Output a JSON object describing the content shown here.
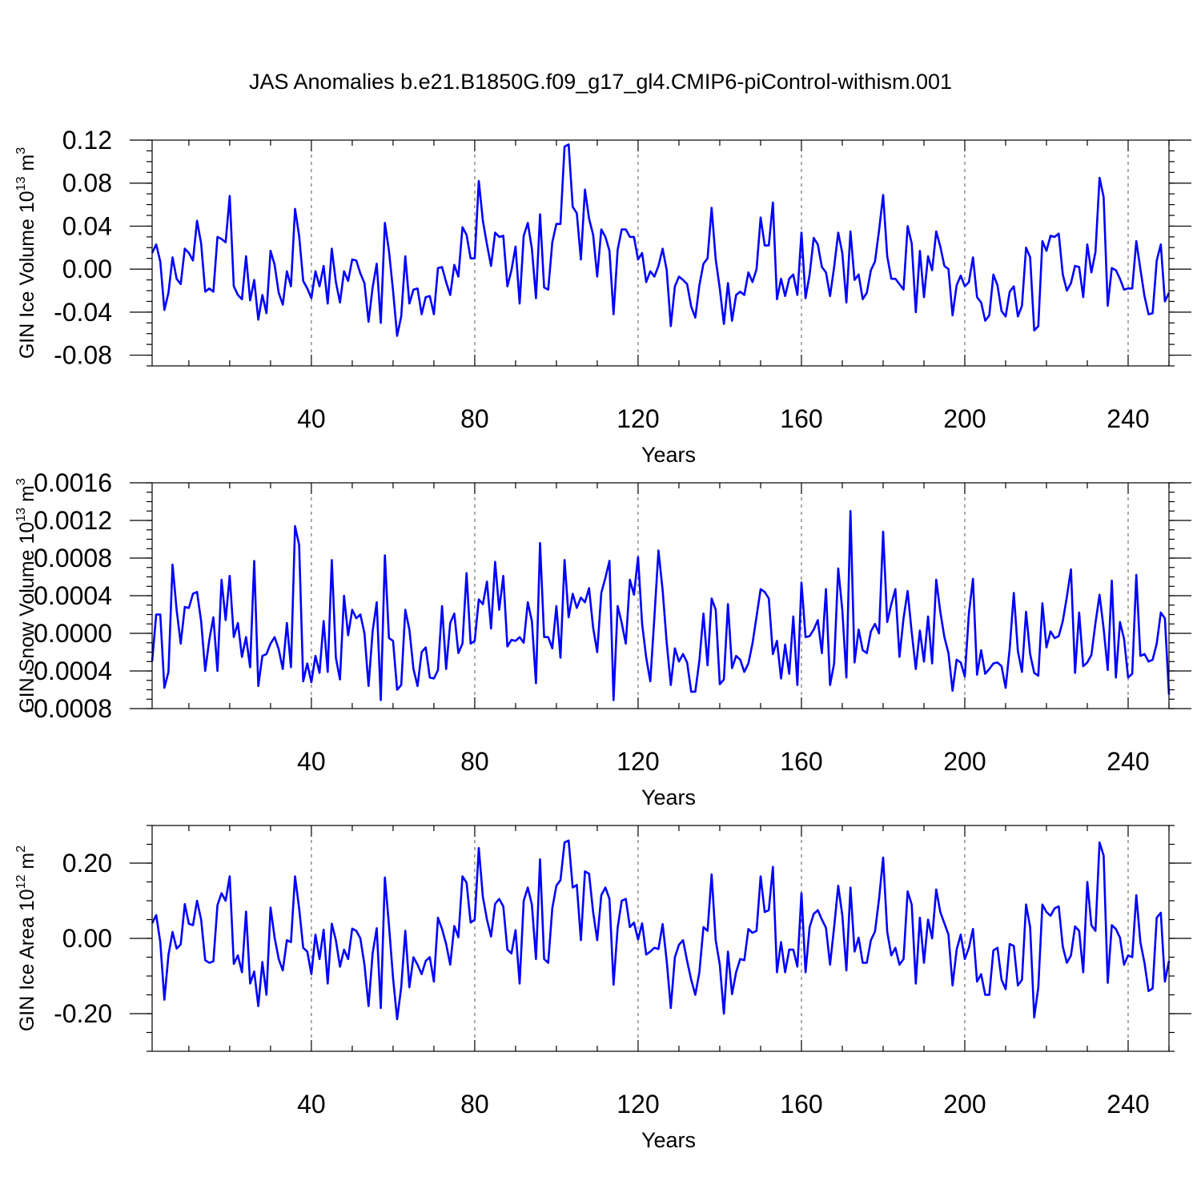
{
  "figure_title": "JAS Anomalies b.e21.B1850G.f09_g17_gl4.CMIP6-piControl-withism.001",
  "colors": {
    "line": "#0000ff",
    "axes": "#000000"
  },
  "chart_data": [
    {
      "type": "line",
      "title": "JAS Anomalies b.e21.B1850G.f09_g17_gl4.CMIP6-piControl-withism.001",
      "xlabel": "Years",
      "ylabel": {
        "text": "GIN Ice Volume 10",
        "exp": "13",
        "unit": " m",
        "unit_exp": "3"
      },
      "xlim": [
        1,
        250
      ],
      "ylim": [
        -0.09,
        0.12
      ],
      "xticks": [
        40,
        80,
        120,
        160,
        200,
        240
      ],
      "xtick_labels": [
        "40",
        "80",
        "120",
        "160",
        "200",
        "240"
      ],
      "yticks": [
        -0.08,
        -0.04,
        0.0,
        0.04,
        0.08,
        0.12
      ],
      "ytick_labels": [
        "-0.08",
        "-0.04",
        "0.00",
        "0.04",
        "0.08",
        "0.12"
      ],
      "grid": "vertical dashed at major x ticks",
      "series": [
        {
          "name": "GIN Ice Volume",
          "x_start": 1,
          "values": [
            0.015,
            0.023,
            0.007,
            -0.038,
            -0.022,
            0.011,
            -0.009,
            -0.014,
            0.019,
            0.015,
            0.008,
            0.045,
            0.024,
            -0.021,
            -0.018,
            -0.021,
            0.03,
            0.028,
            0.025,
            0.068,
            -0.016,
            -0.024,
            -0.028,
            0.012,
            -0.029,
            -0.01,
            -0.047,
            -0.024,
            -0.041,
            0.017,
            0.004,
            -0.022,
            -0.033,
            -0.002,
            -0.016,
            0.056,
            0.031,
            -0.011,
            -0.018,
            -0.027,
            -0.002,
            -0.016,
            0.003,
            -0.032,
            0.019,
            -0.012,
            -0.031,
            -0.002,
            -0.011,
            0.009,
            0.008,
            -0.004,
            -0.013,
            -0.049,
            -0.017,
            0.005,
            -0.05,
            0.043,
            0.017,
            -0.02,
            -0.062,
            -0.044,
            0.012,
            -0.032,
            -0.019,
            -0.018,
            -0.042,
            -0.026,
            -0.025,
            -0.042,
            0.001,
            0.002,
            -0.012,
            -0.024,
            0.004,
            -0.007,
            0.039,
            0.032,
            0.01,
            0.01,
            0.082,
            0.045,
            0.023,
            0.003,
            0.034,
            0.03,
            0.031,
            -0.016,
            -0.001,
            0.021,
            -0.032,
            0.031,
            0.043,
            0.019,
            -0.027,
            0.051,
            -0.017,
            -0.019,
            0.025,
            0.042,
            0.042,
            0.114,
            0.116,
            0.058,
            0.052,
            0.009,
            0.074,
            0.047,
            0.032,
            -0.007,
            0.037,
            0.03,
            0.017,
            -0.042,
            0.018,
            0.037,
            0.037,
            0.03,
            0.03,
            0.009,
            0.015,
            -0.012,
            -0.002,
            -0.007,
            0.003,
            0.019,
            -0.001,
            -0.053,
            -0.016,
            -0.007,
            -0.01,
            -0.014,
            -0.035,
            -0.045,
            -0.015,
            0.005,
            0.01,
            0.057,
            0.009,
            -0.018,
            -0.051,
            -0.013,
            -0.048,
            -0.024,
            -0.021,
            -0.024,
            -0.003,
            -0.012,
            0.0,
            0.048,
            0.022,
            0.022,
            0.062,
            -0.028,
            -0.009,
            -0.025,
            -0.009,
            -0.005,
            -0.024,
            0.034,
            -0.027,
            -0.005,
            0.029,
            0.023,
            0.002,
            -0.003,
            -0.025,
            0.002,
            0.034,
            0.015,
            -0.031,
            0.035,
            -0.01,
            -0.005,
            -0.028,
            -0.022,
            -0.001,
            0.007,
            0.036,
            0.069,
            0.012,
            -0.009,
            -0.009,
            -0.014,
            -0.019,
            0.04,
            0.024,
            -0.04,
            0.017,
            -0.026,
            0.012,
            -0.001,
            0.035,
            0.021,
            0.003,
            0.0,
            -0.043,
            -0.015,
            -0.006,
            -0.016,
            -0.012,
            0.011,
            -0.026,
            -0.031,
            -0.048,
            -0.043,
            -0.005,
            -0.015,
            -0.039,
            -0.044,
            -0.021,
            -0.016,
            -0.044,
            -0.034,
            0.02,
            0.011,
            -0.057,
            -0.053,
            0.026,
            0.017,
            0.031,
            0.03,
            0.033,
            -0.005,
            -0.02,
            -0.013,
            0.003,
            0.002,
            -0.026,
            0.023,
            -0.003,
            0.016,
            0.085,
            0.067,
            -0.034,
            0.001,
            -0.001,
            -0.009,
            -0.019,
            -0.018,
            -0.018,
            0.026,
            0.0,
            -0.025,
            -0.042,
            -0.041,
            0.008,
            0.023,
            -0.03,
            -0.022
          ]
        }
      ]
    },
    {
      "type": "line",
      "title": "",
      "xlabel": "Years",
      "ylabel": {
        "text": "GIN Snow Volume 10",
        "exp": "13",
        "unit": " m",
        "unit_exp": "3"
      },
      "xlim": [
        1,
        250
      ],
      "ylim": [
        -0.0008,
        0.0016
      ],
      "xticks": [
        40,
        80,
        120,
        160,
        200,
        240
      ],
      "xtick_labels": [
        "40",
        "80",
        "120",
        "160",
        "200",
        "240"
      ],
      "yticks": [
        -0.0008,
        -0.0004,
        0.0,
        0.0004,
        0.0008,
        0.0012,
        0.0016
      ],
      "ytick_labels": [
        "-0.0008",
        "-0.0004",
        "0.0000",
        "0.0004",
        "0.0008",
        "0.0012",
        "0.0016"
      ],
      "grid": "vertical dashed at major x ticks",
      "series": [
        {
          "name": "GIN Snow Volume",
          "x_start": 1,
          "values": [
            -0.0003,
            0.0002,
            0.0002,
            -0.00058,
            -0.00041,
            0.00073,
            0.00025,
            -0.00011,
            0.00028,
            0.00027,
            0.00042,
            0.00044,
            0.00013,
            -0.0004,
            -7e-05,
            0.00017,
            -0.0004,
            0.00057,
            0.00014,
            0.00061,
            -4e-05,
            0.00011,
            -0.00025,
            -4e-05,
            -0.00036,
            0.00077,
            -0.00056,
            -0.00024,
            -0.00022,
            -0.00011,
            -4e-05,
            -0.00017,
            -0.00038,
            0.00011,
            -0.00036,
            0.00114,
            0.00094,
            -0.00051,
            -0.00032,
            -0.00052,
            -0.00024,
            -0.00042,
            0.00013,
            -0.00041,
            0.00078,
            -0.00026,
            -0.00049,
            0.0004,
            -2e-05,
            0.00025,
            0.00016,
            0.0002,
            0.0,
            -0.00056,
            2e-05,
            0.00033,
            -0.00071,
            0.00083,
            -5e-05,
            -8e-05,
            -0.0006,
            -0.00055,
            0.00025,
            4e-05,
            -0.00038,
            -0.00056,
            -0.0002,
            -0.00015,
            -0.00047,
            -0.00048,
            -0.00039,
            0.00029,
            -0.00038,
            0.00011,
            0.00021,
            -0.00021,
            -0.00011,
            0.00064,
            -0.00011,
            -8e-05,
            0.00036,
            0.00031,
            0.00055,
            5e-05,
            0.00076,
            0.00025,
            0.00061,
            -0.00014,
            -7e-05,
            -8e-05,
            -4e-05,
            -0.0001,
            0.00033,
            0.00013,
            -0.00053,
            0.00096,
            -4e-05,
            -4e-05,
            -0.00016,
            0.00029,
            -0.00026,
            0.00078,
            0.00017,
            0.00042,
            0.00027,
            0.00038,
            0.00033,
            0.00048,
            6e-05,
            -0.0002,
            0.00043,
            0.00059,
            0.00077,
            -0.00071,
            0.00029,
            0.00011,
            -0.00011,
            0.00057,
            0.00041,
            0.00081,
            0.0001,
            -0.00026,
            -0.00051,
            0.00017,
            0.00088,
            0.00046,
            -0.0001,
            -0.00055,
            -0.00016,
            -0.0003,
            -0.00022,
            -0.00031,
            -0.00062,
            -0.00062,
            -0.00029,
            0.00021,
            -0.00034,
            0.00037,
            0.00025,
            -0.00054,
            -0.00049,
            0.00031,
            -0.00037,
            -0.00024,
            -0.00028,
            -0.00041,
            -0.00032,
            -0.00011,
            0.00018,
            0.00047,
            0.00044,
            0.00037,
            -0.00022,
            -8e-05,
            -0.00048,
            -0.00012,
            -0.00043,
            0.00018,
            -0.00055,
            0.00054,
            -4e-05,
            -3e-05,
            4e-05,
            0.00014,
            -0.00021,
            0.00047,
            -0.00055,
            -0.00032,
            0.00069,
            0.00025,
            -0.00047,
            0.0013,
            -0.00031,
            4e-05,
            -0.00018,
            -0.00021,
            2e-05,
            0.0001,
            0.0,
            0.00108,
            0.00012,
            0.00031,
            0.00047,
            -0.00025,
            0.00016,
            0.00045,
            1e-05,
            -0.00038,
            3e-05,
            -0.0003,
            0.00018,
            -0.00032,
            0.00057,
            0.00023,
            -4e-05,
            -0.00021,
            -0.00061,
            -0.00028,
            -0.00031,
            -0.00046,
            0.00021,
            0.00058,
            -0.00044,
            -0.00018,
            -0.00043,
            -0.00038,
            -0.00032,
            -0.00031,
            -0.00035,
            -0.00058,
            -0.00016,
            0.00043,
            -0.00019,
            -0.00041,
            0.00023,
            -0.00022,
            -0.00042,
            -0.00045,
            0.00032,
            -0.00015,
            2e-05,
            -5e-05,
            -3e-05,
            0.00013,
            0.00039,
            0.00068,
            -0.00042,
            0.00022,
            -0.00035,
            -0.00031,
            -0.00023,
            0.00011,
            0.00041,
            5e-05,
            -0.00039,
            0.00056,
            -0.00047,
            0.00012,
            -6e-05,
            -0.00047,
            -0.00043,
            0.00062,
            -0.00024,
            -0.00022,
            -0.0003,
            -0.00028,
            -0.00011,
            0.00022,
            0.00016,
            -0.00065
          ]
        }
      ]
    },
    {
      "type": "line",
      "title": "",
      "xlabel": "Years",
      "ylabel": {
        "text": "GIN Ice Area 10",
        "exp": "12",
        "unit": " m",
        "unit_exp": "2"
      },
      "xlim": [
        1,
        250
      ],
      "ylim": [
        -0.3,
        0.3
      ],
      "xticks": [
        40,
        80,
        120,
        160,
        200,
        240
      ],
      "xtick_labels": [
        "40",
        "80",
        "120",
        "160",
        "200",
        "240"
      ],
      "yticks": [
        -0.2,
        0.0,
        0.2
      ],
      "ytick_labels": [
        "-0.20",
        "0.00",
        "0.20"
      ],
      "grid": "vertical dashed at major x ticks",
      "series": [
        {
          "name": "GIN Ice Area",
          "x_start": 1,
          "values": [
            0.04,
            0.062,
            -0.01,
            -0.163,
            -0.044,
            0.017,
            -0.027,
            -0.016,
            0.091,
            0.039,
            0.035,
            0.1,
            0.05,
            -0.058,
            -0.065,
            -0.061,
            0.088,
            0.12,
            0.1,
            0.165,
            -0.068,
            -0.045,
            -0.09,
            0.071,
            -0.12,
            -0.088,
            -0.18,
            -0.063,
            -0.15,
            0.082,
            0.002,
            -0.055,
            -0.085,
            -0.005,
            -0.01,
            0.165,
            0.08,
            -0.025,
            -0.035,
            -0.095,
            0.01,
            -0.055,
            0.023,
            -0.12,
            0.039,
            -0.005,
            -0.075,
            -0.03,
            -0.055,
            0.026,
            0.02,
            0.0,
            -0.07,
            -0.18,
            -0.04,
            0.027,
            -0.185,
            0.162,
            0.035,
            -0.105,
            -0.215,
            -0.13,
            0.02,
            -0.13,
            -0.05,
            -0.07,
            -0.095,
            -0.06,
            -0.05,
            -0.115,
            0.055,
            0.025,
            -0.015,
            -0.07,
            0.033,
            0.003,
            0.165,
            0.148,
            0.042,
            0.05,
            0.24,
            0.11,
            0.05,
            0.005,
            0.092,
            0.105,
            0.085,
            -0.03,
            -0.04,
            0.022,
            -0.12,
            0.1,
            0.135,
            0.09,
            -0.055,
            0.21,
            -0.055,
            -0.065,
            0.08,
            0.14,
            0.155,
            0.255,
            0.26,
            0.135,
            0.142,
            -0.005,
            0.178,
            0.172,
            0.07,
            -0.005,
            0.115,
            0.135,
            0.105,
            -0.123,
            0.028,
            0.1,
            0.105,
            0.03,
            0.042,
            -0.003,
            0.04,
            -0.043,
            -0.035,
            -0.025,
            -0.028,
            0.038,
            -0.06,
            -0.185,
            -0.05,
            -0.017,
            -0.005,
            -0.06,
            -0.11,
            -0.15,
            -0.09,
            0.03,
            0.02,
            0.17,
            -0.005,
            -0.07,
            -0.2,
            -0.035,
            -0.148,
            -0.09,
            -0.055,
            -0.058,
            0.025,
            0.015,
            0.02,
            0.165,
            0.07,
            0.075,
            0.19,
            -0.09,
            -0.01,
            -0.09,
            -0.03,
            -0.03,
            -0.075,
            0.12,
            -0.09,
            0.03,
            0.065,
            0.075,
            0.05,
            0.028,
            -0.07,
            0.03,
            0.14,
            0.062,
            -0.085,
            0.135,
            -0.035,
            0.002,
            -0.065,
            -0.065,
            -0.005,
            0.018,
            0.105,
            0.215,
            0.018,
            -0.045,
            -0.025,
            -0.07,
            -0.055,
            0.125,
            0.09,
            -0.12,
            0.055,
            -0.065,
            0.05,
            0.0,
            0.13,
            0.07,
            0.04,
            0.01,
            -0.125,
            -0.03,
            0.01,
            -0.055,
            -0.025,
            0.025,
            -0.115,
            -0.095,
            -0.15,
            -0.15,
            -0.032,
            -0.025,
            -0.11,
            -0.135,
            -0.015,
            -0.02,
            -0.125,
            -0.11,
            0.09,
            0.03,
            -0.21,
            -0.13,
            0.09,
            0.07,
            0.06,
            0.08,
            0.085,
            -0.022,
            -0.065,
            -0.045,
            0.032,
            0.02,
            -0.09,
            0.15,
            0.035,
            0.02,
            0.255,
            0.22,
            -0.118,
            0.035,
            0.025,
            0.002,
            -0.07,
            -0.045,
            -0.05,
            0.115,
            -0.01,
            -0.065,
            -0.14,
            -0.133,
            0.055,
            0.068,
            -0.115,
            -0.06
          ]
        }
      ]
    }
  ]
}
